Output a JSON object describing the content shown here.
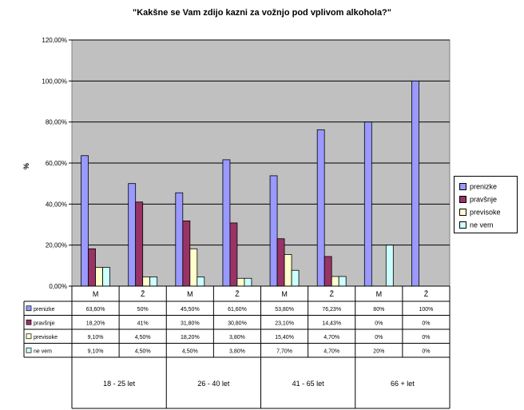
{
  "chart_data": {
    "type": "bar",
    "title": "\"Kakšne se Vam zdijo kazni za vožnjo pod vplivom alkohola?\"",
    "ylabel": "%",
    "ylim": [
      0,
      120
    ],
    "y_ticks": [
      "0,00%",
      "20,00%",
      "40,00%",
      "60,00%",
      "80,00%",
      "100,00%",
      "120,00%"
    ],
    "grid": true,
    "legend_position": "right",
    "categories": [
      "M",
      "Ž",
      "M",
      "Ž",
      "M",
      "Ž",
      "M",
      "Ž"
    ],
    "groups": [
      "18 - 25 let",
      "26 - 40 let",
      "41 - 65 let",
      "66 + let"
    ],
    "series": [
      {
        "name": "prenizke",
        "color": "#9999ff",
        "values": [
          63.6,
          50,
          45.5,
          61.6,
          53.8,
          76.23,
          80,
          100
        ],
        "labels": [
          "63,60%",
          "50%",
          "45,50%",
          "61,60%",
          "53,80%",
          "76,23%",
          "80%",
          "100%"
        ]
      },
      {
        "name": "pravšnje",
        "color": "#993366",
        "values": [
          18.2,
          41,
          31.8,
          30.8,
          23.1,
          14.43,
          0,
          0
        ],
        "labels": [
          "18,20%",
          "41%",
          "31,80%",
          "30,80%",
          "23,10%",
          "14,43%",
          "0%",
          "0%"
        ]
      },
      {
        "name": "previsoke",
        "color": "#ffffcc",
        "values": [
          9.1,
          4.5,
          18.2,
          3.8,
          15.4,
          4.7,
          0,
          0
        ],
        "labels": [
          "9,10%",
          "4,50%",
          "18,20%",
          "3,80%",
          "15,40%",
          "4,70%",
          "0%",
          "0%"
        ]
      },
      {
        "name": "ne vem",
        "color": "#ccffff",
        "values": [
          9.1,
          4.5,
          4.5,
          3.8,
          7.7,
          4.7,
          20,
          0
        ],
        "labels": [
          "9,10%",
          "4,50%",
          "4,50%",
          "3,80%",
          "7,70%",
          "4,70%",
          "20%",
          "0%"
        ]
      }
    ]
  }
}
